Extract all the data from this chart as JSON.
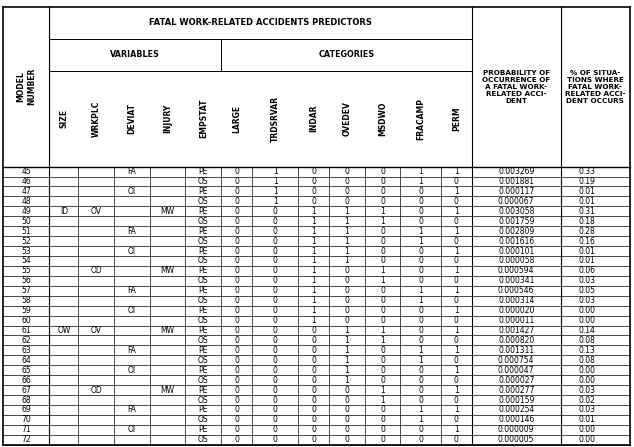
{
  "title": "FATAL WORK-RELATED ACCIDENTS PREDICTORS",
  "header_variables": "VARIABLES",
  "header_categories": "CATEGORIES",
  "col_headers_rotated": [
    "SIZE",
    "WRKPLC",
    "DEVIAT",
    "INJURY",
    "EMPSTAT",
    "LARGE",
    "TRDSRVAR",
    "INDAR",
    "OVEDEV",
    "MSDWO",
    "FRACAMP",
    "PERM"
  ],
  "col_header_prob": "PROBABILITY OF\nOCCURRENCE OF\nA FATAL WORK-\nRELATED ACCI-\nDENT",
  "col_header_pct": "% OF SITUA-\nTIONS WHERE\nFATAL WORK-\nRELATED ACCI-\nDENT OCCURS",
  "row_header1": "MODEL\nNUMBER",
  "rows": [
    [
      45,
      "",
      "",
      "FA",
      "PE",
      0,
      1,
      0,
      0,
      0,
      1,
      1,
      "0.003269",
      "0.33"
    ],
    [
      46,
      "",
      "",
      "",
      "OS",
      0,
      1,
      0,
      0,
      0,
      1,
      0,
      "0.001881",
      "0.19"
    ],
    [
      47,
      "",
      "",
      "OI",
      "PE",
      0,
      1,
      0,
      0,
      0,
      0,
      1,
      "0.000117",
      "0.01"
    ],
    [
      48,
      "",
      "",
      "",
      "OS",
      0,
      1,
      0,
      0,
      0,
      0,
      0,
      "0.000067",
      "0.01"
    ],
    [
      49,
      "ID",
      "OV",
      "MW",
      "PE",
      0,
      0,
      1,
      1,
      1,
      0,
      1,
      "0.003058",
      "0.31"
    ],
    [
      50,
      "",
      "",
      "",
      "OS",
      0,
      0,
      1,
      1,
      1,
      0,
      0,
      "0.001759",
      "0.18"
    ],
    [
      51,
      "",
      "",
      "FA",
      "PE",
      0,
      0,
      1,
      1,
      0,
      1,
      1,
      "0.002809",
      "0.28"
    ],
    [
      52,
      "",
      "",
      "",
      "OS",
      0,
      0,
      1,
      1,
      0,
      1,
      0,
      "0.001616",
      "0.16"
    ],
    [
      53,
      "",
      "",
      "OI",
      "PE",
      0,
      0,
      1,
      1,
      0,
      0,
      1,
      "0.000101",
      "0.01"
    ],
    [
      54,
      "",
      "",
      "",
      "OS",
      0,
      0,
      1,
      1,
      0,
      0,
      0,
      "0.000058",
      "0.01"
    ],
    [
      55,
      "",
      "OD",
      "MW",
      "PE",
      0,
      0,
      1,
      0,
      1,
      0,
      1,
      "0.000594",
      "0.06"
    ],
    [
      56,
      "",
      "",
      "",
      "OS",
      0,
      0,
      1,
      0,
      1,
      0,
      0,
      "0.000341",
      "0.03"
    ],
    [
      57,
      "",
      "",
      "FA",
      "PE",
      0,
      0,
      1,
      0,
      0,
      1,
      1,
      "0.000546",
      "0.05"
    ],
    [
      58,
      "",
      "",
      "",
      "OS",
      0,
      0,
      1,
      0,
      0,
      1,
      0,
      "0.000314",
      "0.03"
    ],
    [
      59,
      "",
      "",
      "OI",
      "PE",
      0,
      0,
      1,
      0,
      0,
      0,
      1,
      "0.000020",
      "0.00"
    ],
    [
      60,
      "",
      "",
      "",
      "OS",
      0,
      0,
      1,
      0,
      0,
      0,
      0,
      "0.000011",
      "0.00"
    ],
    [
      61,
      "OW",
      "OV",
      "MW",
      "PE",
      0,
      0,
      0,
      1,
      1,
      0,
      1,
      "0.001427",
      "0.14"
    ],
    [
      62,
      "",
      "",
      "",
      "OS",
      0,
      0,
      0,
      1,
      1,
      0,
      0,
      "0.000820",
      "0.08"
    ],
    [
      63,
      "",
      "",
      "FA",
      "PE",
      0,
      0,
      0,
      1,
      0,
      1,
      1,
      "0.001311",
      "0.13"
    ],
    [
      64,
      "",
      "",
      "",
      "OS",
      0,
      0,
      0,
      1,
      0,
      1,
      0,
      "0.000754",
      "0.08"
    ],
    [
      65,
      "",
      "",
      "OI",
      "PE",
      0,
      0,
      0,
      1,
      0,
      0,
      1,
      "0.000047",
      "0.00"
    ],
    [
      66,
      "",
      "",
      "",
      "OS",
      0,
      0,
      0,
      1,
      0,
      0,
      0,
      "0.000027",
      "0.00"
    ],
    [
      67,
      "",
      "OD",
      "MW",
      "PE",
      0,
      0,
      0,
      0,
      1,
      0,
      1,
      "0.000277",
      "0.03"
    ],
    [
      68,
      "",
      "",
      "",
      "OS",
      0,
      0,
      0,
      0,
      1,
      0,
      0,
      "0.000159",
      "0.02"
    ],
    [
      69,
      "",
      "",
      "FA",
      "PE",
      0,
      0,
      0,
      0,
      0,
      1,
      1,
      "0.000254",
      "0.03"
    ],
    [
      70,
      "",
      "",
      "",
      "OS",
      0,
      0,
      0,
      0,
      0,
      1,
      0,
      "0.000146",
      "0.01"
    ],
    [
      71,
      "",
      "",
      "OI",
      "PE",
      0,
      0,
      0,
      0,
      0,
      0,
      1,
      "0.000009",
      "0.00"
    ],
    [
      72,
      "",
      "",
      "",
      "OS",
      0,
      0,
      0,
      0,
      0,
      0,
      0,
      "0.000005",
      "0.00"
    ]
  ],
  "bg_color": "#ffffff",
  "line_color": "#000000",
  "text_color": "#000000",
  "font_size": 5.5,
  "header_font_size": 5.5
}
